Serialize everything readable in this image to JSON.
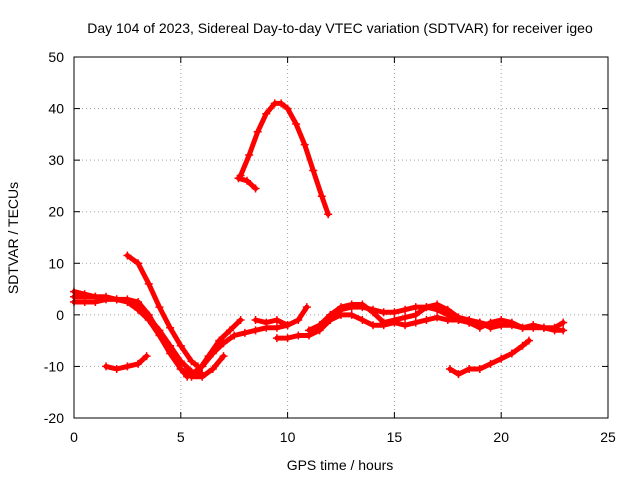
{
  "chart_data": {
    "type": "scatter",
    "title": "Day 104 of 2023, Sidereal Day-to-day VTEC variation (SDTVAR) for receiver igeo",
    "xlabel": "GPS time / hours",
    "ylabel": "SDTVAR / TECUs",
    "xlim": [
      0,
      25
    ],
    "ylim": [
      -20,
      50
    ],
    "xticks": [
      "0",
      "5",
      "10",
      "15",
      "20",
      "25"
    ],
    "yticks": [
      "-20",
      "-10",
      "0",
      "10",
      "20",
      "30",
      "40",
      "50"
    ],
    "grid": true,
    "series_color": "#ff0000",
    "series": [
      {
        "name": "arc-hump",
        "x": [
          7.8,
          8.2,
          8.6,
          9.0,
          9.4,
          9.7,
          10.0,
          10.4,
          10.8,
          11.2,
          11.6,
          11.9
        ],
        "y": [
          27,
          31,
          35.5,
          39,
          41,
          41,
          40,
          37,
          33,
          28,
          23,
          19.5
        ]
      },
      {
        "name": "arc-hump-start",
        "x": [
          7.7,
          8.1,
          8.5
        ],
        "y": [
          26.5,
          26,
          24.5
        ]
      },
      {
        "name": "arc-1",
        "x": [
          0,
          0.5,
          1.0,
          1.5,
          2.0,
          2.5,
          3.0,
          3.5,
          4.0,
          4.5,
          5.0,
          5.3
        ],
        "y": [
          4.5,
          4,
          3.5,
          3.5,
          3,
          3,
          2.5,
          0,
          -3.5,
          -7,
          -10.5,
          -12
        ]
      },
      {
        "name": "arc-2",
        "x": [
          0,
          0.5,
          1.0,
          1.5,
          2.0,
          2.5,
          3.0,
          3.5,
          4.0,
          4.5,
          5.0,
          5.5,
          6.0,
          6.5,
          7.0
        ],
        "y": [
          2.5,
          2.5,
          2.5,
          3,
          3,
          2.5,
          1,
          -1,
          -4,
          -7.5,
          -10.5,
          -12,
          -12,
          -10.5,
          -8
        ]
      },
      {
        "name": "arc-3",
        "x": [
          0,
          1.0,
          2.0,
          3.0,
          3.5,
          4.0,
          4.5,
          5.0,
          5.5,
          6.0
        ],
        "y": [
          3.5,
          3.5,
          3,
          2,
          -0.5,
          -3,
          -6,
          -9,
          -11,
          -11.5
        ]
      },
      {
        "name": "arc-4",
        "x": [
          2.5,
          3.0,
          3.5,
          4.0,
          4.5,
          5.0,
          5.5,
          5.8
        ],
        "y": [
          11.5,
          10,
          6,
          1.5,
          -2.5,
          -6,
          -9,
          -10
        ]
      },
      {
        "name": "arc-5",
        "x": [
          1.5,
          2.0,
          2.5,
          3.0,
          3.4
        ],
        "y": [
          -10,
          -10.5,
          -10,
          -9.5,
          -8
        ]
      },
      {
        "name": "arc-6",
        "x": [
          5.8,
          6.3,
          6.8,
          7.3,
          7.8
        ],
        "y": [
          -11,
          -8,
          -5,
          -3,
          -1
        ]
      },
      {
        "name": "arc-7",
        "x": [
          5.5,
          6.0,
          6.5,
          7.0,
          7.5,
          8.0,
          8.5,
          9.0,
          9.5,
          10.0,
          10.5,
          10.9
        ],
        "y": [
          -11.5,
          -10,
          -7.5,
          -5.5,
          -4,
          -3.5,
          -3,
          -2.5,
          -2.5,
          -2,
          -1,
          1.5
        ]
      },
      {
        "name": "arc-8",
        "x": [
          8.5,
          9.0,
          9.5,
          10.0
        ],
        "y": [
          -1,
          -1.5,
          -1,
          -2
        ]
      },
      {
        "name": "arc-9",
        "x": [
          9.5,
          10.0,
          10.5,
          11.0,
          11.5,
          12.0,
          12.5,
          13.0,
          13.5,
          14.0,
          14.5,
          15.0,
          15.5,
          16.0,
          16.5,
          17.0,
          17.5,
          18.0,
          18.5,
          19.0,
          19.5,
          20.0,
          20.5,
          21.0,
          21.5,
          22.0,
          22.5,
          22.9
        ],
        "y": [
          -4.5,
          -4.5,
          -4,
          -4,
          -3,
          -1,
          1,
          1.5,
          1.5,
          1,
          0.5,
          0.5,
          1,
          1.5,
          1.5,
          1,
          0,
          -1,
          -1.5,
          -1.5,
          -2,
          -2,
          -2,
          -2.5,
          -2.5,
          -2.5,
          -3,
          -3
        ]
      },
      {
        "name": "arc-10",
        "x": [
          11.0,
          11.5,
          12.0,
          12.5,
          13.0,
          13.5,
          14.0,
          14.5,
          15.0,
          15.5,
          16.0,
          16.5,
          17.0,
          17.5,
          18.0,
          18.5,
          19.0,
          19.5,
          20.0
        ],
        "y": [
          -3,
          -2,
          0,
          1.5,
          2,
          2,
          0.5,
          -1.5,
          -1,
          -0.5,
          0,
          1.5,
          2,
          1,
          -0.5,
          -1,
          -1.5,
          -2.5,
          -2
        ]
      },
      {
        "name": "arc-11",
        "x": [
          12.0,
          12.5,
          13.0,
          13.5,
          14.0,
          14.5,
          15.0,
          15.5,
          16.0,
          16.5,
          17.0,
          17.5,
          18.0,
          18.5,
          19.0,
          19.5,
          20.0,
          20.5,
          21.0,
          21.5,
          22.0,
          22.5,
          22.9
        ],
        "y": [
          -1,
          0,
          0,
          -1,
          -2,
          -2,
          -1.5,
          -2,
          -1.5,
          -1,
          -0.5,
          -1,
          -1,
          -1.5,
          -2.5,
          -1.5,
          -1,
          -1.5,
          -2.5,
          -2,
          -2.5,
          -2.5,
          -1.5
        ]
      },
      {
        "name": "arc-12",
        "x": [
          17.6,
          18.0,
          18.5,
          19.0,
          19.5,
          20.0,
          20.5,
          21.0,
          21.3
        ],
        "y": [
          -10.5,
          -11.5,
          -10.5,
          -10.5,
          -9.5,
          -8.5,
          -7.5,
          -6,
          -5
        ]
      }
    ]
  }
}
